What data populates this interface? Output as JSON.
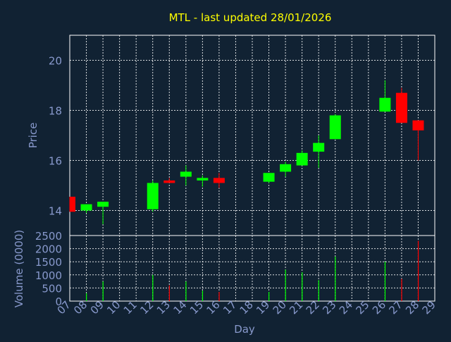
{
  "chart_data": [
    {
      "type": "candlestick",
      "title": "MTL - last updated 28/01/2026",
      "ylabel": "Price",
      "ylim": [
        13,
        21
      ],
      "yticks": [
        14,
        16,
        18,
        20
      ],
      "grid": true,
      "colors": {
        "background": "#112233",
        "title": "#ffff00",
        "axis_text": "#8899cc",
        "grid": "#ffffff",
        "up": "#00ff00",
        "down": "#ff0000"
      },
      "candles": [
        {
          "day": "07",
          "open": 14.55,
          "high": 14.55,
          "low": 13.95,
          "close": 13.95
        },
        {
          "day": "08",
          "open": 14.0,
          "high": 14.25,
          "low": 13.9,
          "close": 14.25
        },
        {
          "day": "09",
          "open": 14.15,
          "high": 14.35,
          "low": 13.45,
          "close": 14.35
        },
        {
          "day": "12",
          "open": 14.05,
          "high": 15.2,
          "low": 13.95,
          "close": 15.1
        },
        {
          "day": "13",
          "open": 15.2,
          "high": 15.3,
          "low": 15.1,
          "close": 15.1
        },
        {
          "day": "14",
          "open": 15.35,
          "high": 15.8,
          "low": 15.0,
          "close": 15.55
        },
        {
          "day": "15",
          "open": 15.2,
          "high": 15.4,
          "low": 14.95,
          "close": 15.3
        },
        {
          "day": "16",
          "open": 15.3,
          "high": 15.5,
          "low": 14.9,
          "close": 15.1
        },
        {
          "day": "19",
          "open": 15.15,
          "high": 15.5,
          "low": 15.1,
          "close": 15.5
        },
        {
          "day": "20",
          "open": 15.55,
          "high": 15.95,
          "low": 15.35,
          "close": 15.85
        },
        {
          "day": "21",
          "open": 15.8,
          "high": 16.4,
          "low": 15.8,
          "close": 16.3
        },
        {
          "day": "22",
          "open": 16.35,
          "high": 17.0,
          "low": 15.7,
          "close": 16.7
        },
        {
          "day": "23",
          "open": 16.85,
          "high": 17.85,
          "low": 16.85,
          "close": 17.8
        },
        {
          "day": "26",
          "open": 17.95,
          "high": 19.2,
          "low": 17.95,
          "close": 18.5
        },
        {
          "day": "27",
          "open": 18.7,
          "high": 18.9,
          "low": 17.5,
          "close": 17.5
        },
        {
          "day": "28",
          "open": 17.6,
          "high": 17.6,
          "low": 16.0,
          "close": 17.2
        }
      ]
    },
    {
      "type": "bar",
      "ylabel": "Volume (0000)",
      "xlabel": "Day",
      "ylim": [
        0,
        2500
      ],
      "yticks": [
        0,
        500,
        1000,
        1500,
        2000,
        2500
      ],
      "categories": [
        "07",
        "08",
        "09",
        "10",
        "11",
        "12",
        "13",
        "14",
        "15",
        "16",
        "17",
        "18",
        "19",
        "20",
        "21",
        "22",
        "23",
        "24",
        "25",
        "26",
        "27",
        "28",
        "29"
      ],
      "grid": true,
      "bars": [
        {
          "day": "07",
          "value": 0,
          "direction": "down"
        },
        {
          "day": "08",
          "value": 300,
          "direction": "up"
        },
        {
          "day": "09",
          "value": 750,
          "direction": "up"
        },
        {
          "day": "12",
          "value": 1000,
          "direction": "up"
        },
        {
          "day": "13",
          "value": 600,
          "direction": "down"
        },
        {
          "day": "14",
          "value": 750,
          "direction": "up"
        },
        {
          "day": "15",
          "value": 400,
          "direction": "up"
        },
        {
          "day": "16",
          "value": 350,
          "direction": "down"
        },
        {
          "day": "19",
          "value": 350,
          "direction": "up"
        },
        {
          "day": "20",
          "value": 1200,
          "direction": "up"
        },
        {
          "day": "21",
          "value": 1100,
          "direction": "up"
        },
        {
          "day": "22",
          "value": 800,
          "direction": "up"
        },
        {
          "day": "23",
          "value": 1700,
          "direction": "up"
        },
        {
          "day": "26",
          "value": 1500,
          "direction": "up"
        },
        {
          "day": "27",
          "value": 850,
          "direction": "down"
        },
        {
          "day": "28",
          "value": 2300,
          "direction": "down"
        }
      ]
    }
  ]
}
